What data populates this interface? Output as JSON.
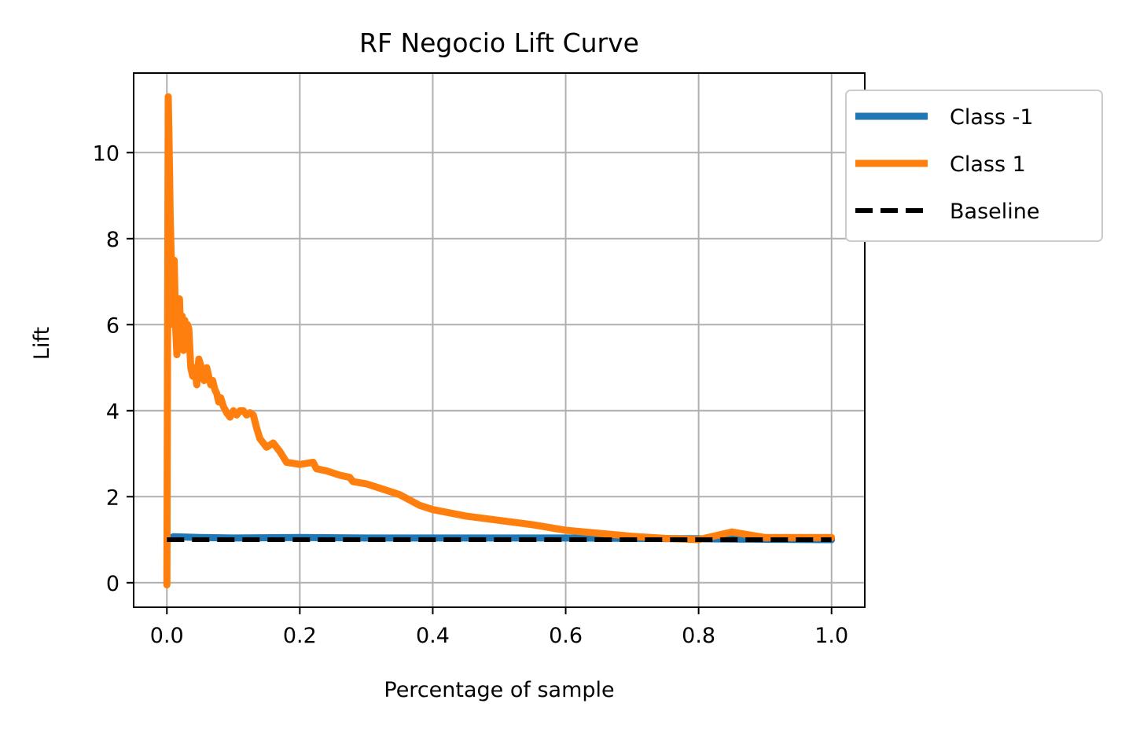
{
  "chart_data": {
    "type": "line",
    "title": "RF Negocio Lift Curve",
    "xlabel": "Percentage of sample",
    "ylabel": "Lift",
    "xlim": [
      -0.05,
      1.05
    ],
    "ylim": [
      -0.57,
      11.85
    ],
    "xticks": [
      0.0,
      0.2,
      0.4,
      0.6,
      0.8,
      1.0
    ],
    "xtick_labels": [
      "0.0",
      "0.2",
      "0.4",
      "0.6",
      "0.8",
      "1.0"
    ],
    "yticks": [
      0,
      2,
      4,
      6,
      8,
      10
    ],
    "ytick_labels": [
      "0",
      "2",
      "4",
      "6",
      "8",
      "10"
    ],
    "grid": true,
    "legend_position": "upper right, outside plot",
    "series": [
      {
        "name": "Class -1",
        "color": "#1f77b4",
        "style": "solid",
        "x": [
          0.002,
          0.01,
          0.05,
          0.1,
          0.2,
          0.3,
          0.4,
          0.5,
          0.6,
          0.7,
          0.8,
          0.9,
          1.0
        ],
        "y": [
          1.0,
          1.07,
          1.05,
          1.04,
          1.05,
          1.04,
          1.04,
          1.04,
          1.04,
          1.03,
          1.02,
          1.01,
          1.0
        ]
      },
      {
        "name": "Class 1",
        "color": "#ff7f0e",
        "style": "solid",
        "x": [
          0.0,
          0.002,
          0.003,
          0.004,
          0.005,
          0.007,
          0.009,
          0.011,
          0.013,
          0.015,
          0.017,
          0.019,
          0.021,
          0.023,
          0.025,
          0.027,
          0.029,
          0.031,
          0.033,
          0.036,
          0.039,
          0.042,
          0.045,
          0.048,
          0.052,
          0.056,
          0.06,
          0.063,
          0.066,
          0.069,
          0.072,
          0.075,
          0.078,
          0.081,
          0.085,
          0.09,
          0.095,
          0.1,
          0.105,
          0.11,
          0.115,
          0.12,
          0.125,
          0.13,
          0.135,
          0.14,
          0.15,
          0.16,
          0.17,
          0.18,
          0.2,
          0.22,
          0.225,
          0.24,
          0.26,
          0.275,
          0.28,
          0.3,
          0.32,
          0.35,
          0.38,
          0.4,
          0.45,
          0.5,
          0.55,
          0.6,
          0.65,
          0.7,
          0.75,
          0.8,
          0.85,
          0.9,
          0.95,
          1.0
        ],
        "y": [
          -0.05,
          11.3,
          10.5,
          9.5,
          8.5,
          7.3,
          6.0,
          7.5,
          6.0,
          5.3,
          5.8,
          6.6,
          5.6,
          6.2,
          5.4,
          6.1,
          5.6,
          6.0,
          5.9,
          5.0,
          4.8,
          5.0,
          4.6,
          5.2,
          5.0,
          4.7,
          5.0,
          4.8,
          4.6,
          4.7,
          4.5,
          4.4,
          4.2,
          4.3,
          4.1,
          3.95,
          3.85,
          4.0,
          3.9,
          4.0,
          4.0,
          3.9,
          3.95,
          3.9,
          3.6,
          3.35,
          3.15,
          3.25,
          3.05,
          2.8,
          2.75,
          2.8,
          2.65,
          2.6,
          2.5,
          2.45,
          2.35,
          2.3,
          2.2,
          2.05,
          1.8,
          1.7,
          1.55,
          1.45,
          1.35,
          1.22,
          1.15,
          1.08,
          1.03,
          1.0,
          1.18,
          1.05,
          1.05,
          1.05
        ]
      },
      {
        "name": "Baseline",
        "color": "#000000",
        "style": "dashed",
        "x": [
          0.0,
          1.0
        ],
        "y": [
          1.0,
          1.0
        ]
      }
    ]
  }
}
